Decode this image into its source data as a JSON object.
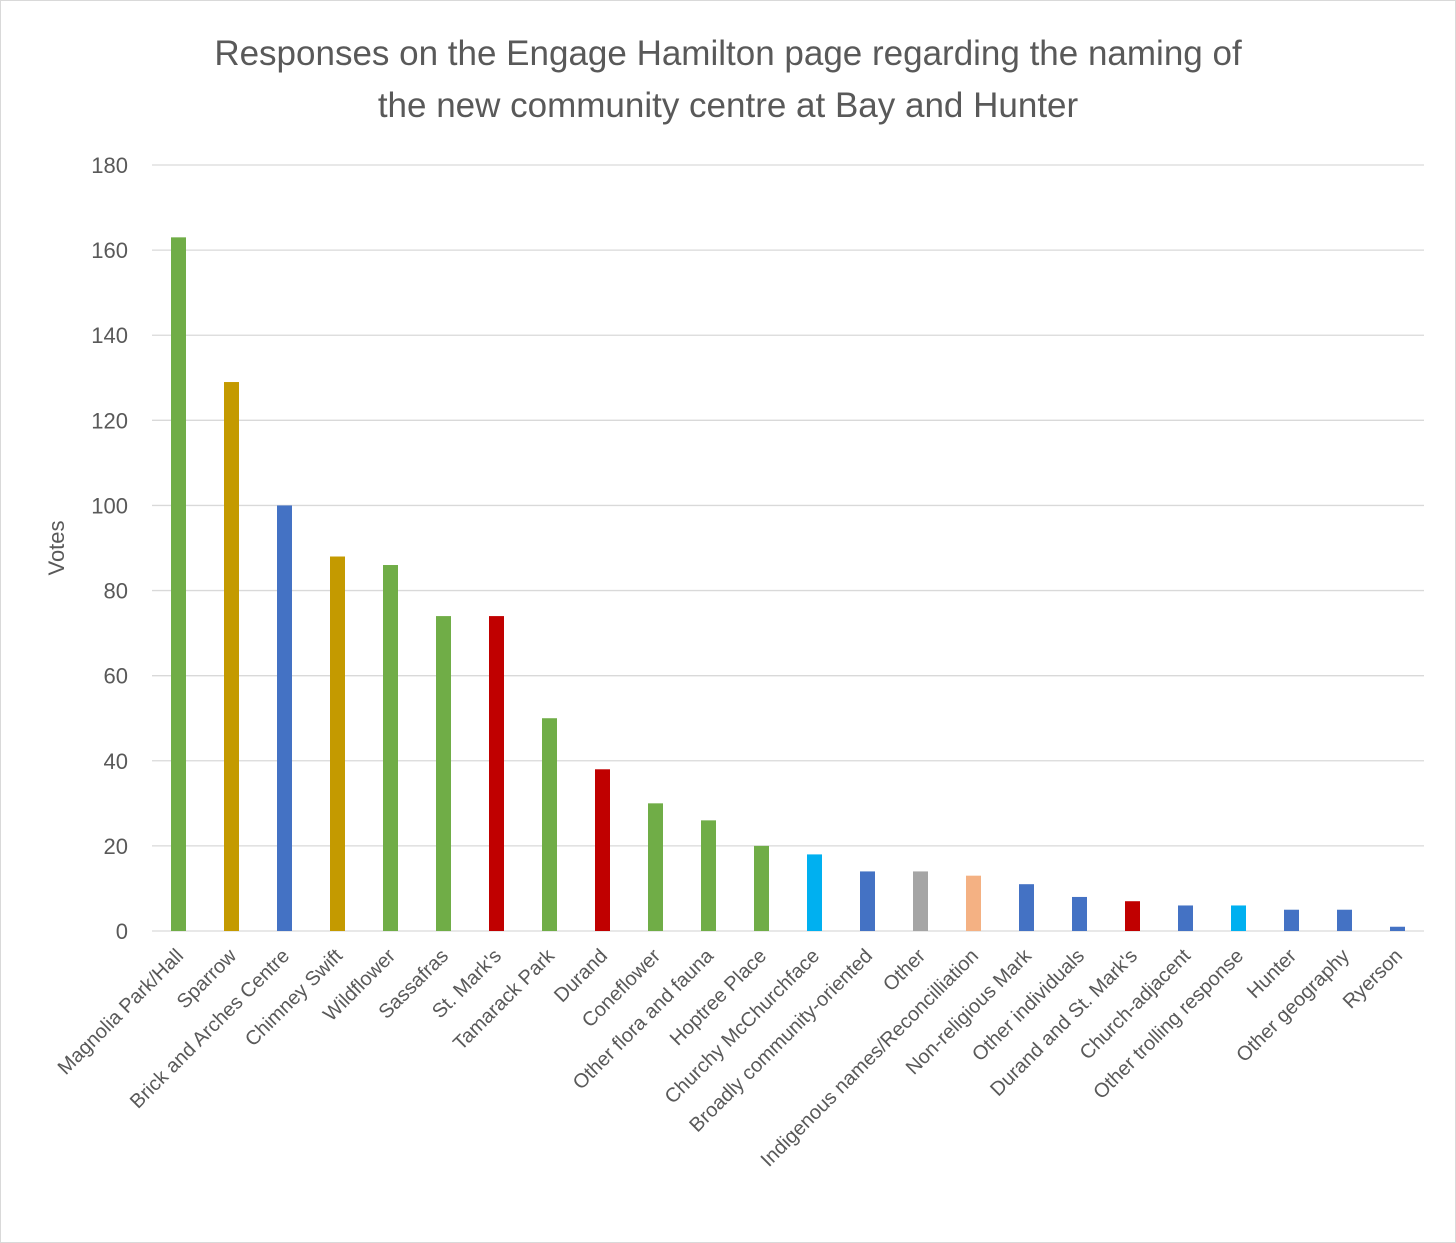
{
  "chart_data": {
    "type": "bar",
    "title_lines": [
      "Responses on the Engage Hamilton page regarding the naming of",
      "the new community centre at Bay and Hunter"
    ],
    "xlabel": "",
    "ylabel": "Votes",
    "ylim": [
      0,
      180
    ],
    "yticks": [
      0,
      20,
      40,
      60,
      80,
      100,
      120,
      140,
      160,
      180
    ],
    "grid": true,
    "legend": "none",
    "categories": [
      "Magnolia Park/Hall",
      "Sparrow",
      "Brick and Arches Centre",
      "Chimney Swift",
      "Wildflower",
      "Sassafras",
      "St. Mark's",
      "Tamarack Park",
      "Durand",
      "Coneflower",
      "Other flora and fauna",
      "Hoptree Place",
      "Churchy McChurchface",
      "Broadly community-oriented",
      "Other",
      "Indigenous names/Reconcilliation",
      "Non-religious Mark",
      "Other individuals",
      "Durand and St. Mark's",
      "Church-adjacent",
      "Other trolling response",
      "Hunter",
      "Other geography",
      "Ryerson"
    ],
    "values": [
      163,
      129,
      100,
      88,
      86,
      74,
      74,
      50,
      38,
      30,
      26,
      20,
      18,
      14,
      14,
      13,
      11,
      8,
      7,
      6,
      6,
      5,
      5,
      1
    ],
    "bar_colors": [
      "#70ad47",
      "#c49a00",
      "#4472c4",
      "#c49a00",
      "#70ad47",
      "#70ad47",
      "#c00000",
      "#70ad47",
      "#c00000",
      "#70ad47",
      "#70ad47",
      "#70ad47",
      "#00b0f0",
      "#4472c4",
      "#a5a5a5",
      "#f4b183",
      "#4472c4",
      "#4472c4",
      "#c00000",
      "#4472c4",
      "#00b0f0",
      "#4472c4",
      "#4472c4",
      "#4472c4"
    ],
    "gridline_color": "#d9d9d9",
    "text_color": "#595959"
  }
}
